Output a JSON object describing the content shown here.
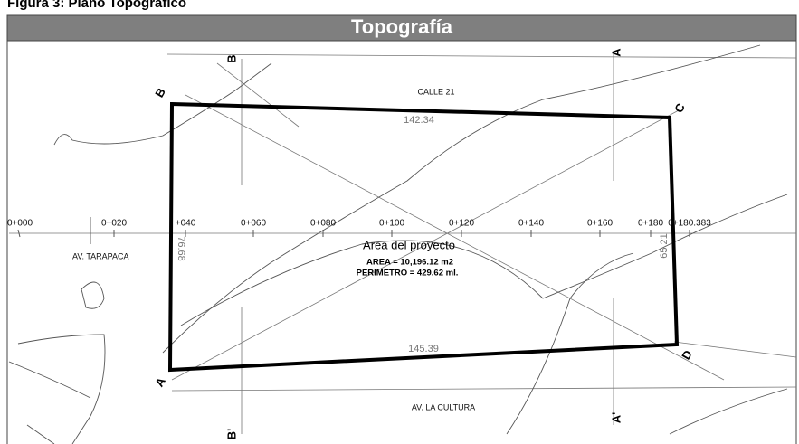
{
  "caption": "Figura 3: Plano Topográfico",
  "header": {
    "title": "Topografía"
  },
  "streets": [
    "CALLE 21",
    "AV. TARAPACA",
    "AV. LA CULTURA"
  ],
  "sides": [
    "142.34",
    "145.39",
    "76.68",
    "65.21"
  ],
  "project": {
    "title": "Area del proyecto",
    "area": "AREA = 10,196.12 m2",
    "perimeter": "PERIMETRO = 429.62 ml."
  },
  "chainage": [
    "0+000",
    "0+020",
    "+040",
    "0+060",
    "0+080",
    "0+100",
    "0+120",
    "0+140",
    "0+160",
    "0+180",
    "0+180.383"
  ],
  "sections": [
    "A",
    "B",
    "C",
    "D",
    "B",
    "B'",
    "A",
    "A'"
  ]
}
